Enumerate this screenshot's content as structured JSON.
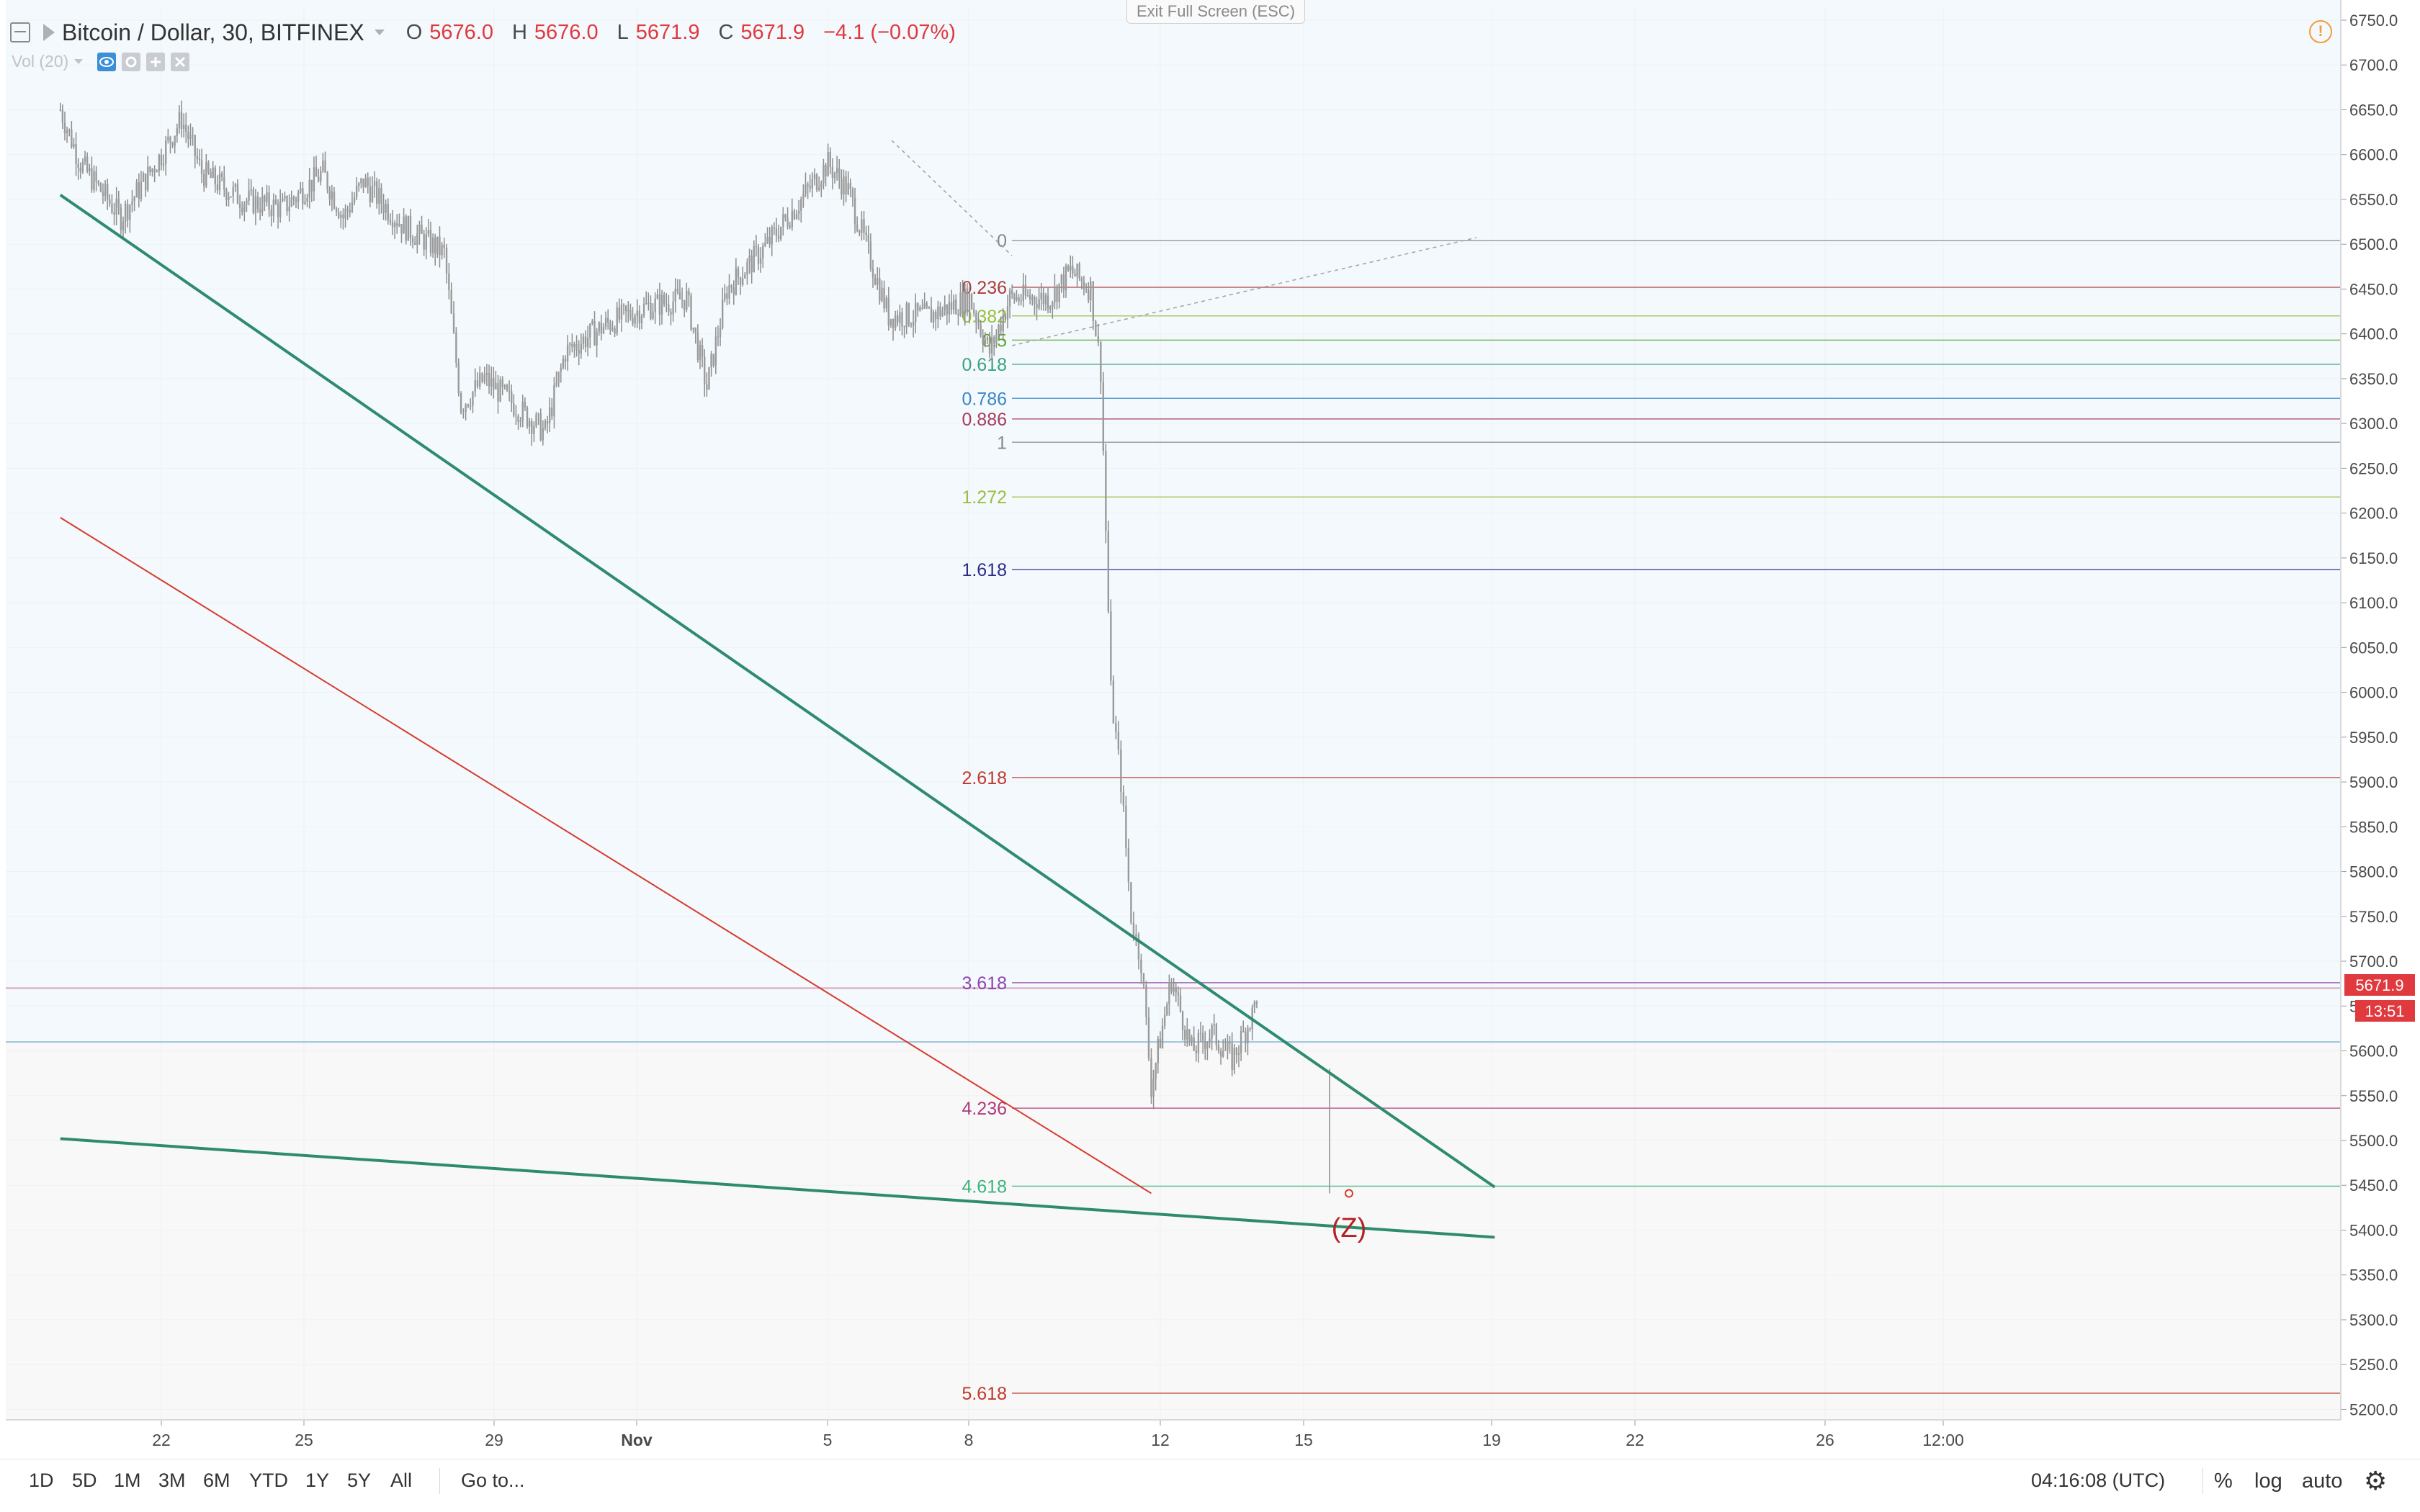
{
  "header": {
    "symbol": "Bitcoin / Dollar, 30, BITFINEX",
    "open_label": "O",
    "open": "5676.0",
    "high_label": "H",
    "high": "5676.0",
    "low_label": "L",
    "low": "5671.9",
    "close_label": "C",
    "close": "5671.9",
    "change": "−4.1 (−0.07%)",
    "volume_indicator": "Vol (20)"
  },
  "exit_fullscreen": "Exit Full Screen (ESC)",
  "warning_icon": "!",
  "price_badge": "5671.9",
  "countdown_badge": "13:51",
  "wave_label": "(Z)",
  "bottom": {
    "ranges": [
      "1D",
      "5D",
      "1M",
      "3M",
      "6M",
      "YTD",
      "1Y",
      "5Y",
      "All"
    ],
    "goto": "Go to...",
    "clock": "04:16:08 (UTC)",
    "percent": "%",
    "log": "log",
    "auto": "auto"
  },
  "colors": {
    "plot_bg_upper": "#f3f9fd",
    "plot_bg_lower": "#f8f8f8",
    "candle": "#8d8d8d",
    "trendline_green": "#2e8b6e",
    "trendline_red": "#d83a2e",
    "down": "#e0393e",
    "warning": "#f29d38"
  },
  "chart_data": {
    "type": "candlestick",
    "symbol": "Bitcoin / Dollar",
    "interval": "30",
    "exchange": "BITFINEX",
    "y_axis": {
      "ticks": [
        5200,
        5250,
        5300,
        5350,
        5400,
        5450,
        5500,
        5550,
        5600,
        5650,
        5700,
        5750,
        5800,
        5850,
        5900,
        5950,
        6000,
        6050,
        6100,
        6150,
        6200,
        6250,
        6300,
        6350,
        6400,
        6450,
        6500,
        6550,
        6600,
        6650,
        6700,
        6750
      ],
      "range": [
        5185,
        6765
      ]
    },
    "x_axis": {
      "labels": [
        "22",
        "25",
        "29",
        "Nov",
        "5",
        "8",
        "12",
        "15",
        "19",
        "22",
        "26",
        "12:00"
      ]
    },
    "price_path": [
      [
        "Oct 19 12:00",
        6650
      ],
      [
        "Oct 20",
        6590
      ],
      [
        "Oct 21",
        6530
      ],
      [
        "Oct 22",
        6600
      ],
      [
        "Oct 22 12:00",
        6640
      ],
      [
        "Oct 23",
        6580
      ],
      [
        "Oct 24",
        6550
      ],
      [
        "Oct 25",
        6540
      ],
      [
        "Oct 26",
        6580
      ],
      [
        "Oct 26 12:00",
        6530
      ],
      [
        "Oct 27",
        6570
      ],
      [
        "Oct 28",
        6520
      ],
      [
        "Oct 29",
        6490
      ],
      [
        "Oct 29 10:00",
        6320
      ],
      [
        "Oct 30",
        6350
      ],
      [
        "Oct 31",
        6310
      ],
      [
        "Oct 31 12:00",
        6290
      ],
      [
        "Nov 1",
        6380
      ],
      [
        "Nov 2",
        6410
      ],
      [
        "Nov 3",
        6430
      ],
      [
        "Nov 4",
        6440
      ],
      [
        "Nov 4 12:00",
        6340
      ],
      [
        "Nov 5",
        6450
      ],
      [
        "Nov 6",
        6500
      ],
      [
        "Nov 7",
        6560
      ],
      [
        "Nov 7 12:00",
        6590
      ],
      [
        "Nov 8",
        6560
      ],
      [
        "Nov 8 12:00",
        6490
      ],
      [
        "Nov 9",
        6420
      ],
      [
        "Nov 10",
        6420
      ],
      [
        "Nov 11",
        6440
      ],
      [
        "Nov 11 12:00",
        6380
      ],
      [
        "Nov 12",
        6440
      ],
      [
        "Nov 13",
        6440
      ],
      [
        "Nov 13 12:00",
        6470
      ],
      [
        "Nov 14",
        6450
      ],
      [
        "Nov 14 06:00",
        6360
      ],
      [
        "Nov 14 12:00",
        6000
      ],
      [
        "Nov 14 18:00",
        5900
      ],
      [
        "Nov 15",
        5750
      ],
      [
        "Nov 15 06:00",
        5700
      ],
      [
        "Nov 15 12:00",
        5560
      ],
      [
        "Nov 16",
        5680
      ],
      [
        "Nov 16 12:00",
        5600
      ],
      [
        "Nov 17",
        5620
      ],
      [
        "Nov 17 12:00",
        5590
      ],
      [
        "Nov 18",
        5640
      ],
      [
        "Nov 18 04:00",
        5672
      ]
    ],
    "current_price": 5671.9,
    "current_change": -4.1,
    "current_change_pct": -0.07,
    "fibonacci": {
      "levels": [
        {
          "ratio": "0",
          "price": 6504,
          "color": "#888888"
        },
        {
          "ratio": "0.236",
          "price": 6452,
          "color": "#b03a3a"
        },
        {
          "ratio": "0.382",
          "price": 6420,
          "color": "#9cbf3a"
        },
        {
          "ratio": "0.5",
          "price": 6393,
          "color": "#5aa832"
        },
        {
          "ratio": "0.618",
          "price": 6366,
          "color": "#3aa37a"
        },
        {
          "ratio": "0.786",
          "price": 6328,
          "color": "#3a86c8"
        },
        {
          "ratio": "0.886",
          "price": 6305,
          "color": "#a83c5a"
        },
        {
          "ratio": "1",
          "price": 6279,
          "color": "#888888"
        },
        {
          "ratio": "1.272",
          "price": 6218,
          "color": "#9cbf3a"
        },
        {
          "ratio": "1.618",
          "price": 6137,
          "color": "#2b2b8a"
        },
        {
          "ratio": "2.618",
          "price": 5905,
          "color": "#c0392b"
        },
        {
          "ratio": "3.618",
          "price": 5676,
          "color": "#8e44ad"
        },
        {
          "ratio": "4.236",
          "price": 5536,
          "color": "#b03a7a"
        },
        {
          "ratio": "4.618",
          "price": 5449,
          "color": "#3ab57a"
        },
        {
          "ratio": "5.618",
          "price": 5218,
          "color": "#c0392b"
        }
      ]
    },
    "horizontal_lines": [
      5670,
      5610
    ],
    "trendlines": [
      {
        "color": "green",
        "from": [
          "Oct 19 12:00",
          6555
        ],
        "to": [
          "Nov 24",
          5448
        ]
      },
      {
        "color": "green",
        "from": [
          "Oct 19 12:00",
          5502
        ],
        "to": [
          "Nov 24",
          5392
        ]
      },
      {
        "color": "red",
        "from": [
          "Oct 19 12:00",
          6195
        ],
        "to": [
          "Nov 15 12:00",
          5441
        ]
      }
    ]
  }
}
